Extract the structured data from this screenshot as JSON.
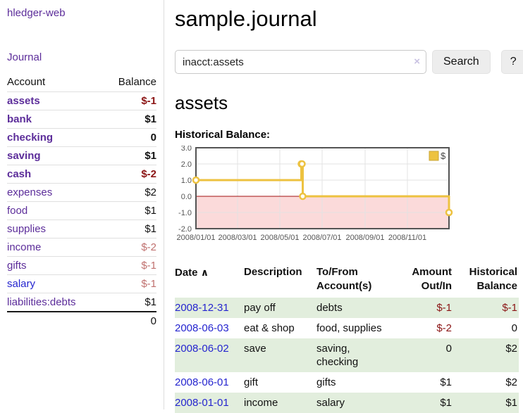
{
  "colors": {
    "link-purple": "#5c2d9a",
    "link-blue": "#2525cf",
    "neg-strong": "#8b1515",
    "neg-soft": "#c0716f",
    "row-green": "#e2eedd",
    "series-gold": "#edc240",
    "chart-negative-fill": "#fbdada",
    "chart-zero-line": "#a01010"
  },
  "sidebar": {
    "brand": "hledger-web",
    "journal_link": "Journal",
    "accounts": {
      "header_account": "Account",
      "header_balance": "Balance",
      "rows": [
        {
          "name": "assets",
          "depth": 1,
          "bold": true,
          "balance": "$-1",
          "balance_style": "neg-strong",
          "link_style": "purple"
        },
        {
          "name": "bank",
          "depth": 2,
          "bold": true,
          "balance": "$1",
          "balance_style": "pos",
          "link_style": "purple"
        },
        {
          "name": "checking",
          "depth": 3,
          "bold": true,
          "balance": "0",
          "balance_style": "pos",
          "link_style": "purple"
        },
        {
          "name": "saving",
          "depth": 3,
          "bold": true,
          "balance": "$1",
          "balance_style": "pos",
          "link_style": "purple"
        },
        {
          "name": "cash",
          "depth": 2,
          "bold": true,
          "balance": "$-2",
          "balance_style": "neg-strong",
          "link_style": "purple"
        },
        {
          "name": "expenses",
          "depth": 1,
          "bold": false,
          "balance": "$2",
          "balance_style": "pos",
          "link_style": "purple"
        },
        {
          "name": "food",
          "depth": 2,
          "bold": false,
          "balance": "$1",
          "balance_style": "pos",
          "link_style": "purple"
        },
        {
          "name": "supplies",
          "depth": 2,
          "bold": false,
          "balance": "$1",
          "balance_style": "pos",
          "link_style": "purple"
        },
        {
          "name": "income",
          "depth": 1,
          "bold": false,
          "balance": "$-2",
          "balance_style": "neg-soft",
          "link_style": "purple"
        },
        {
          "name": "gifts",
          "depth": 2,
          "bold": false,
          "balance": "$-1",
          "balance_style": "neg-soft",
          "link_style": "purple"
        },
        {
          "name": "salary",
          "depth": 2,
          "bold": false,
          "balance": "$-1",
          "balance_style": "neg-soft",
          "link_style": "blue"
        },
        {
          "name": "liabilities:debts",
          "depth": 1,
          "bold": false,
          "balance": "$1",
          "balance_style": "pos",
          "link_style": "purple"
        }
      ],
      "total": "0"
    }
  },
  "main": {
    "title": "sample.journal",
    "search": {
      "value": "inacct:assets",
      "clear_icon": "×",
      "button_label": "Search",
      "help_label": "?"
    },
    "account_heading": "assets",
    "chart_label": "Historical Balance:"
  },
  "chart_data": {
    "type": "line",
    "step": true,
    "title": "Historical Balance:",
    "series": [
      {
        "name": "$",
        "color": "#edc240",
        "point_dates": [
          "2008-01-01",
          "2008-06-01",
          "2008-06-02",
          "2008-06-03",
          "2008-12-31"
        ],
        "point_days": [
          0,
          152,
          153,
          154,
          365
        ],
        "values": [
          1,
          2,
          2,
          0,
          -1
        ]
      }
    ],
    "x_ticks": [
      "2008/01/01",
      "2008/03/01",
      "2008/05/01",
      "2008/07/01",
      "2008/09/01",
      "2008/11/01"
    ],
    "x_tick_days": [
      0,
      60,
      121,
      182,
      244,
      305
    ],
    "x_range_days": [
      0,
      365
    ],
    "y_ticks": [
      3.0,
      2.0,
      1.0,
      0.0,
      -1.0,
      -2.0
    ],
    "ylim": [
      -2,
      3
    ],
    "grid": true,
    "legend": {
      "label": "$",
      "position": "top-right"
    },
    "negative_region_fill": "#fbdada",
    "zero_line_color": "#a01010"
  },
  "register": {
    "headers": {
      "date": "Date",
      "sort_arrow": "∧",
      "description": "Description",
      "accounts": "To/From Account(s)",
      "amount": "Amount Out/In",
      "balance": "Historical Balance"
    },
    "rows": [
      {
        "date": "2008-12-31",
        "description": "pay off",
        "accounts": "debts",
        "amount": "$-1",
        "amount_neg": true,
        "balance": "$-1",
        "balance_neg": true
      },
      {
        "date": "2008-06-03",
        "description": "eat & shop",
        "accounts": "food, supplies",
        "amount": "$-2",
        "amount_neg": true,
        "balance": "0",
        "balance_neg": false
      },
      {
        "date": "2008-06-02",
        "description": "save",
        "accounts": "saving, checking",
        "amount": "0",
        "amount_neg": false,
        "balance": "$2",
        "balance_neg": false
      },
      {
        "date": "2008-06-01",
        "description": "gift",
        "accounts": "gifts",
        "amount": "$1",
        "amount_neg": false,
        "balance": "$2",
        "balance_neg": false
      },
      {
        "date": "2008-01-01",
        "description": "income",
        "accounts": "salary",
        "amount": "$1",
        "amount_neg": false,
        "balance": "$1",
        "balance_neg": false
      }
    ]
  }
}
